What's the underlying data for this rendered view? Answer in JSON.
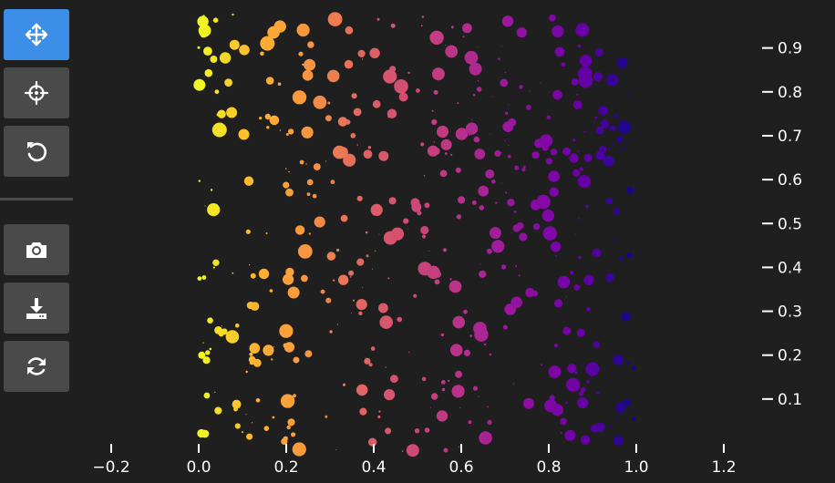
{
  "toolbar": {
    "tools": [
      {
        "name": "pan-tool",
        "icon": "move-arrows-icon",
        "active": true
      },
      {
        "name": "crosshair-tool",
        "icon": "crosshair-icon",
        "active": false
      },
      {
        "name": "reset-tool",
        "icon": "undo-icon",
        "active": false
      },
      {
        "name": "screenshot-tool",
        "icon": "camera-icon",
        "active": false
      },
      {
        "name": "download-tool",
        "icon": "download-icon",
        "active": false
      },
      {
        "name": "refresh-tool",
        "icon": "refresh-icon",
        "active": false
      }
    ],
    "active_color": "#3d8ee6",
    "button_color": "#4a4a4a"
  },
  "chart_data": {
    "type": "scatter",
    "title": "",
    "xlabel": "",
    "ylabel": "",
    "xlim": [
      -0.3,
      1.32
    ],
    "ylim": [
      -0.02,
      1.0
    ],
    "x_ticks": [
      -0.2,
      0.0,
      0.2,
      0.4,
      0.6,
      0.8,
      1.0,
      1.2
    ],
    "x_tick_labels": [
      "−0.2",
      "0.0",
      "0.2",
      "0.4",
      "0.6",
      "0.8",
      "1.0",
      "1.2"
    ],
    "y_ticks": [
      0.1,
      0.2,
      0.3,
      0.4,
      0.5,
      0.6,
      0.7,
      0.8,
      0.9
    ],
    "y_tick_labels": [
      "0.1",
      "0.2",
      "0.3",
      "0.4",
      "0.5",
      "0.6",
      "0.7",
      "0.8",
      "0.9"
    ],
    "y_axis_side": "right",
    "colormap": "plasma_r",
    "color_by": "x",
    "color_stops": [
      "#f0f921",
      "#fdb42f",
      "#f89540",
      "#e16462",
      "#cc4778",
      "#b12a90",
      "#8f0da4",
      "#6a00a8",
      "#0d0887"
    ],
    "background": "#1f1f1f",
    "grid": false,
    "point_count": 500,
    "point_size_range": [
      1,
      16
    ]
  }
}
